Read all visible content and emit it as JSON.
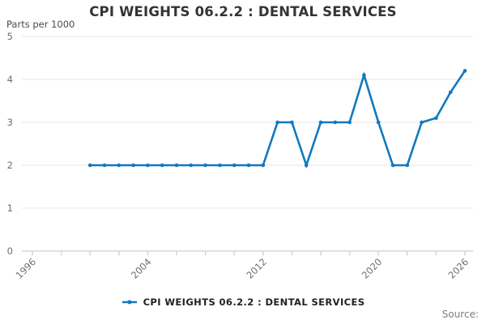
{
  "title": "CPI WEIGHTS 06.2.2 : DENTAL SERVICES",
  "y_axis_unit_label": "Parts per 1000",
  "legend": {
    "series_label": "CPI WEIGHTS 06.2.2 : DENTAL SERVICES"
  },
  "source_label": "Source:",
  "colors": {
    "series_line": "#1178be",
    "grid_line": "#e7e7e7",
    "axis_line": "#c6d2e0",
    "tick_label": "#6f6f6f",
    "title_text": "#343434",
    "legend_text": "#222222",
    "source_text": "#7d7d7d"
  },
  "chart_data": {
    "type": "line",
    "title": "CPI WEIGHTS 06.2.2 : DENTAL SERVICES",
    "xlabel": "",
    "ylabel": "Parts per 1000",
    "grid": "horizontal",
    "legend_position": "bottom",
    "markers": true,
    "x_axis": {
      "range": [
        1996,
        2027
      ],
      "tick_interval_years": 2,
      "labeled_ticks": [
        1996,
        2004,
        2012,
        2020,
        2026
      ]
    },
    "y_axis": {
      "range": [
        0,
        5
      ],
      "ticks": [
        0,
        1,
        2,
        3,
        4,
        5
      ]
    },
    "series": [
      {
        "name": "CPI WEIGHTS 06.2.2 : DENTAL SERVICES",
        "x": [
          2000,
          2001,
          2002,
          2003,
          2004,
          2005,
          2006,
          2007,
          2008,
          2009,
          2010,
          2011,
          2012,
          2013,
          2014,
          2015,
          2016,
          2017,
          2018,
          2019,
          2020,
          2021,
          2022,
          2023,
          2024,
          2025,
          2026
        ],
        "values": [
          2,
          2,
          2,
          2,
          2,
          2,
          2,
          2,
          2,
          2,
          2,
          2,
          2,
          3,
          3,
          2,
          3,
          3,
          3,
          4.1,
          3,
          2,
          2,
          3,
          3.1,
          3.7,
          4.2
        ]
      }
    ]
  }
}
